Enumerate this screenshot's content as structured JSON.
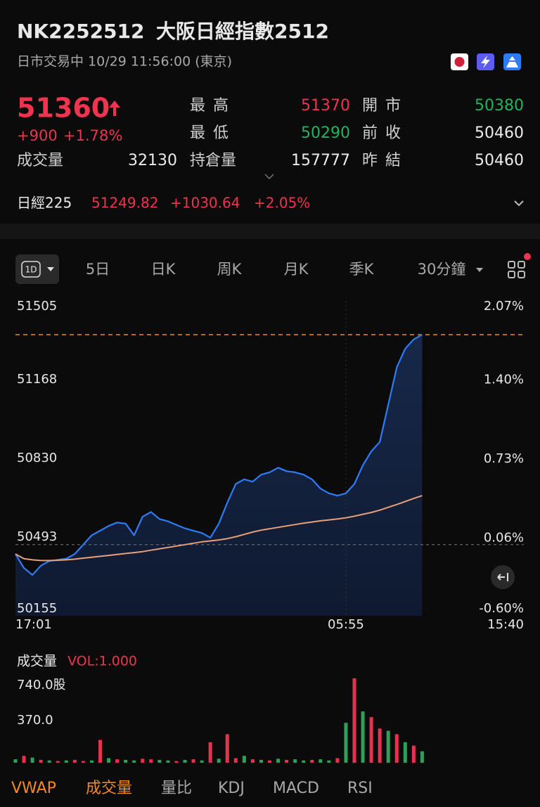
{
  "header": {
    "code": "NK2252512",
    "name": "大阪日經指數2512",
    "status": "日市交易中 10/29 11:56:00 (東京)"
  },
  "quote": {
    "price": 51360,
    "change": "+900",
    "change_pct": "+1.78%",
    "stats": [
      {
        "label": "成交量",
        "value": 32130
      },
      {
        "label": "最 高",
        "value": 51370
      },
      {
        "label": "開 市",
        "value": 50380
      },
      {
        "label": "最 低",
        "value": 50290
      },
      {
        "label": "前 收",
        "value": 50460
      },
      {
        "label": "持倉量",
        "value": 157777
      },
      {
        "label": "昨 結",
        "value": 50460
      }
    ]
  },
  "index": {
    "name": "日經225",
    "value": "51249.82",
    "change": "+1030.64",
    "change_pct": "+2.05%"
  },
  "tabs": [
    "1D",
    "5日",
    "日K",
    "周K",
    "月K",
    "季K",
    "30分鐘"
  ],
  "price_chart": {
    "type": "line",
    "ylim": [
      50155,
      51505
    ],
    "yticks": [
      50155,
      50493,
      50830,
      51168,
      51505
    ],
    "y2lim": [
      -0.6,
      2.07
    ],
    "y2ticks": [
      {
        "value": -0.6,
        "label": "-0.60%"
      },
      {
        "value": 0.06,
        "label": "0.06%"
      },
      {
        "value": 0.73,
        "label": "0.73%"
      },
      {
        "value": 1.4,
        "label": "1.40%"
      },
      {
        "value": 2.07,
        "label": "2.07%"
      }
    ],
    "xlim": [
      0,
      60
    ],
    "xticks": [
      {
        "value": 0,
        "label": "17:01"
      },
      {
        "value": 39,
        "label": "05:55"
      },
      {
        "value": 60,
        "label": "15:40"
      }
    ],
    "series": [
      {
        "color": "#2f7bf5",
        "values": [
          50420,
          50360,
          50330,
          50370,
          50390,
          50395,
          50400,
          50420,
          50460,
          50500,
          50520,
          50540,
          50555,
          50550,
          50500,
          50580,
          50600,
          50570,
          50560,
          50545,
          50530,
          50520,
          50510,
          50490,
          50550,
          50640,
          50720,
          50740,
          50730,
          50760,
          50770,
          50790,
          50775,
          50770,
          50760,
          50740,
          50700,
          50680,
          50670,
          50680,
          50720,
          50800,
          50860,
          50900,
          51060,
          51220,
          51300,
          51340,
          51360
        ]
      },
      {
        "color": "#e8a07a",
        "values": [
          50420,
          50400,
          50395,
          50392,
          50392,
          50393,
          50395,
          50398,
          50402,
          50406,
          50410,
          50414,
          50418,
          50422,
          50426,
          50430,
          50436,
          50442,
          50448,
          50454,
          50460,
          50466,
          50472,
          50476,
          50480,
          50486,
          50494,
          50504,
          50514,
          50522,
          50528,
          50534,
          50540,
          50546,
          50552,
          50557,
          50562,
          50566,
          50570,
          50575,
          50582,
          50590,
          50598,
          50608,
          50620,
          50632,
          50645,
          50658,
          50670
        ]
      }
    ]
  },
  "volume_chart": {
    "type": "bar",
    "title": "成交量",
    "vol_label": "VOL:1.000",
    "ylim": [
      0,
      740
    ],
    "yticks": [
      {
        "value": 370,
        "label": "370.0"
      },
      {
        "value": 740,
        "label": "740.0股"
      }
    ],
    "values": [
      30,
      60,
      45,
      25,
      20,
      15,
      20,
      25,
      15,
      20,
      200,
      40,
      30,
      25,
      20,
      35,
      30,
      25,
      20,
      15,
      25,
      30,
      20,
      180,
      35,
      250,
      40,
      60,
      30,
      25,
      20,
      35,
      25,
      30,
      20,
      25,
      30,
      20,
      40,
      350,
      740,
      450,
      400,
      300,
      280,
      250,
      180,
      150,
      100
    ],
    "colors": [
      "#2ea05a",
      "#e5334f",
      "#2ea05a",
      "#e5334f",
      "#2ea05a",
      "#e5334f",
      "#2ea05a",
      "#e5334f",
      "#e5334f",
      "#2ea05a",
      "#e5334f",
      "#2ea05a",
      "#e5334f",
      "#2ea05a",
      "#2ea05a",
      "#e5334f",
      "#e5334f",
      "#2ea05a",
      "#2ea05a",
      "#e5334f",
      "#2ea05a",
      "#e5334f",
      "#2ea05a",
      "#e5334f",
      "#2ea05a",
      "#e5334f",
      "#e5334f",
      "#2ea05a",
      "#e5334f",
      "#2ea05a",
      "#e5334f",
      "#2ea05a",
      "#e5334f",
      "#2ea05a",
      "#2ea05a",
      "#e5334f",
      "#2ea05a",
      "#2ea05a",
      "#e5334f",
      "#2ea05a",
      "#e5334f",
      "#2ea05a",
      "#e5334f",
      "#e5334f",
      "#2ea05a",
      "#e5334f",
      "#2ea05a",
      "#e5334f",
      "#2ea05a"
    ]
  },
  "bottom_tabs": [
    "VWAP",
    "成交量",
    "量比",
    "KDJ",
    "MACD",
    "RSI"
  ]
}
